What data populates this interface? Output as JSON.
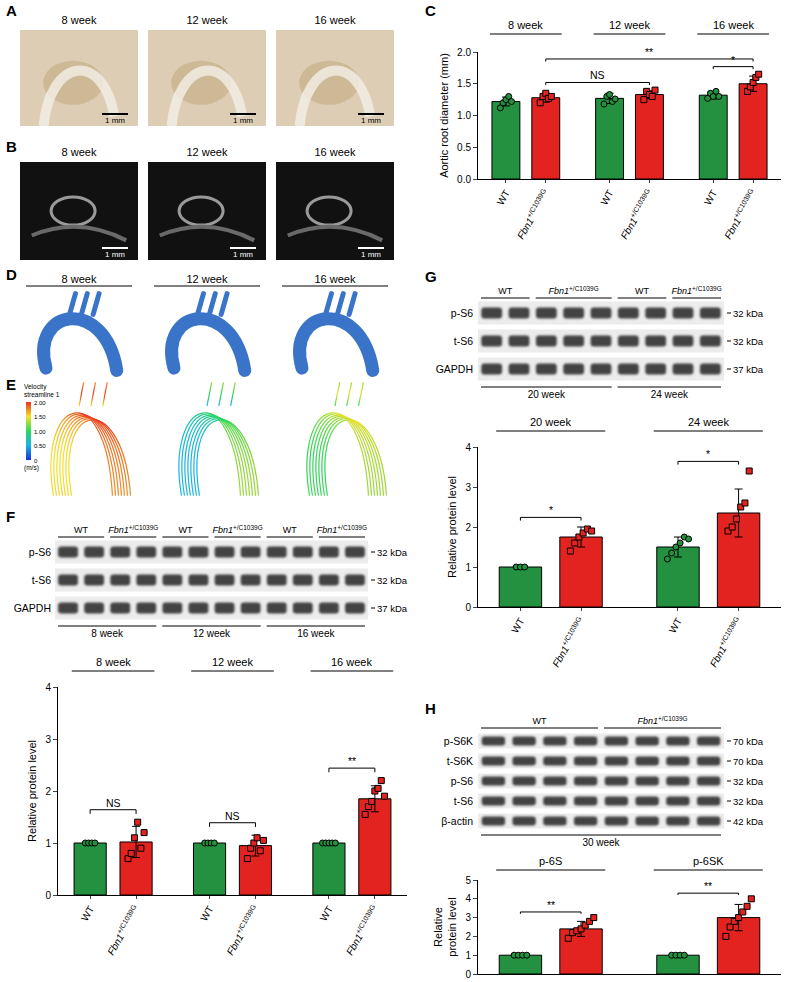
{
  "chart_data": [
    {
      "type": "bar",
      "panel": "C",
      "y_label": "Aortic root diameter (mm)",
      "categories": [
        "8 week",
        "12 week",
        "16 week"
      ],
      "series": [
        {
          "name": "WT",
          "color": "#23913f",
          "marker": "circle",
          "values": [
            1.22,
            1.27,
            1.32
          ],
          "errors": [
            0.07,
            0.08,
            0.06
          ],
          "points": [
            [
              1.12,
              1.2,
              1.25,
              1.3,
              1.22
            ],
            [
              1.18,
              1.3,
              1.33,
              1.22,
              1.26
            ],
            [
              1.27,
              1.35,
              1.3,
              1.38,
              1.3
            ]
          ]
        },
        {
          "name": "Fbn1+/C1039G",
          "color": "#e3231f",
          "marker": "square",
          "values": [
            1.28,
            1.33,
            1.5
          ],
          "errors": [
            0.07,
            0.06,
            0.12
          ],
          "points": [
            [
              1.2,
              1.3,
              1.35,
              1.27,
              1.3
            ],
            [
              1.25,
              1.38,
              1.33,
              1.3,
              1.4
            ],
            [
              1.38,
              1.45,
              1.52,
              1.6,
              1.65
            ]
          ]
        }
      ],
      "ylim": [
        0,
        2
      ],
      "yticks": [
        {
          "value": 0,
          "label": "0.0"
        },
        0.5,
        {
          "value": 1,
          "label": "1.0"
        },
        1.5,
        {
          "value": 2,
          "label": "2.0"
        }
      ],
      "significance": [
        {
          "from": [
            0,
            1
          ],
          "to": [
            1,
            1
          ],
          "label": "NS"
        },
        {
          "from": [
            0,
            1
          ],
          "to": [
            2,
            1
          ],
          "label": "**"
        },
        {
          "from": [
            2,
            0
          ],
          "to": [
            2,
            1
          ],
          "label": "*"
        }
      ]
    },
    {
      "type": "bar",
      "panel": "F",
      "y_label": "Relative protein level",
      "categories": [
        "8 week",
        "12 week",
        "16 week"
      ],
      "series": [
        {
          "name": "WT",
          "color": "#23913f",
          "marker": "circle",
          "values": [
            1,
            1,
            1
          ],
          "errors": [
            0,
            0,
            0
          ],
          "points": [
            [
              1,
              1,
              1,
              1
            ],
            [
              1,
              1,
              1,
              1
            ],
            [
              1,
              1,
              1,
              1,
              1
            ]
          ]
        },
        {
          "name": "Fbn1+/C1039G",
          "color": "#e3231f",
          "marker": "square",
          "values": [
            1.02,
            0.95,
            1.85
          ],
          "errors": [
            0.3,
            0.2,
            0.25
          ],
          "points": [
            [
              0.7,
              0.8,
              1.1,
              1.4,
              0.9,
              1.2
            ],
            [
              0.7,
              0.9,
              1.0,
              1.1,
              0.85,
              1.05
            ],
            [
              1.55,
              1.7,
              1.8,
              2.0,
              2.05,
              2.2,
              1.9
            ]
          ]
        }
      ],
      "ylim": [
        0,
        4
      ],
      "yticks": [
        0,
        1,
        2,
        3,
        4
      ],
      "significance": [
        {
          "from": [
            0,
            0
          ],
          "to": [
            0,
            1
          ],
          "label": "NS"
        },
        {
          "from": [
            1,
            0
          ],
          "to": [
            1,
            1
          ],
          "label": "NS"
        },
        {
          "from": [
            2,
            0
          ],
          "to": [
            2,
            1
          ],
          "label": "**"
        }
      ]
    },
    {
      "type": "bar",
      "panel": "G",
      "y_label": "Relative protein level",
      "categories": [
        "20 week",
        "24 week"
      ],
      "series": [
        {
          "name": "WT",
          "color": "#23913f",
          "marker": "circle",
          "values": [
            1.0,
            1.5
          ],
          "errors": [
            0.02,
            0.25
          ],
          "points": [
            [
              1,
              1,
              1
            ],
            [
              1.2,
              1.35,
              1.5,
              1.6,
              1.75,
              1.7
            ]
          ]
        },
        {
          "name": "Fbn1+/C1039G",
          "color": "#e3231f",
          "marker": "square",
          "values": [
            1.75,
            2.35
          ],
          "errors": [
            0.25,
            0.6
          ],
          "points": [
            [
              1.4,
              1.6,
              1.75,
              1.85,
              1.95,
              1.9
            ],
            [
              1.9,
              2.0,
              2.2,
              2.5,
              2.6,
              3.4
            ]
          ]
        }
      ],
      "ylim": [
        0,
        4
      ],
      "yticks": [
        0,
        1,
        2,
        3,
        4
      ],
      "significance": [
        {
          "from": [
            0,
            0
          ],
          "to": [
            0,
            1
          ],
          "label": "*"
        },
        {
          "from": [
            1,
            0
          ],
          "to": [
            1,
            1
          ],
          "label": "*"
        }
      ]
    },
    {
      "type": "bar",
      "panel": "H",
      "y_label": "Relative protein level",
      "tick_labels": "y",
      "categories": [
        "p-6S",
        "p-6SK"
      ],
      "series": [
        {
          "color": "#23913f",
          "marker": "circle",
          "values": [
            1,
            1
          ],
          "errors": [
            0,
            0
          ],
          "points": [
            [
              1,
              1,
              1,
              1
            ],
            [
              1,
              1,
              1,
              1
            ]
          ]
        },
        {
          "color": "#e3231f",
          "marker": "square",
          "values": [
            2.4,
            3.0
          ],
          "errors": [
            0.4,
            0.7
          ],
          "points": [
            [
              1.9,
              2.2,
              2.3,
              2.4,
              2.6,
              2.8,
              3.0
            ],
            [
              2.0,
              2.5,
              2.8,
              3.0,
              3.3,
              3.6,
              4.0
            ]
          ]
        }
      ],
      "ylim": [
        0,
        5
      ],
      "yticks": [
        0,
        1,
        2,
        3,
        4,
        5
      ],
      "significance": [
        {
          "from": [
            0,
            0
          ],
          "to": [
            0,
            1
          ],
          "label": "**"
        },
        {
          "from": [
            1,
            0
          ],
          "to": [
            1,
            1
          ],
          "label": "**"
        }
      ]
    }
  ],
  "images": [
    {
      "panel": "A",
      "titles": [
        "8 week",
        "12 week",
        "16 week"
      ],
      "scale_bar": "1 mm"
    },
    {
      "panel": "B",
      "titles": [
        "8 week",
        "12 week",
        "16 week"
      ],
      "scale_bar": "1 mm"
    },
    {
      "panel": "D",
      "titles": [
        "8 week",
        "12 week",
        "16 week"
      ]
    },
    {
      "panel": "E",
      "colorbar": {
        "title": "Velocity streamline 1",
        "unit": "(m/s)",
        "range": [
          0,
          2
        ],
        "ticks": [
          0,
          {
            "value": 0.5,
            "label": "0.50"
          },
          {
            "value": 1,
            "label": "1.00"
          },
          {
            "value": 1.5,
            "label": "1.50"
          },
          {
            "value": 2,
            "label": "2.00"
          }
        ]
      }
    }
  ],
  "blots": [
    {
      "panel": "F",
      "lane_groups": [
        {
          "label": "WT",
          "lanes": 2
        },
        {
          "label": "Fbn1+/C1039G",
          "lanes": 2
        },
        {
          "label": "WT",
          "lanes": 2
        },
        {
          "label": "Fbn1+/C1039G",
          "lanes": 2
        },
        {
          "label": "WT",
          "lanes": 2
        },
        {
          "label": "Fbn1+/C1039G",
          "lanes": 2
        }
      ],
      "rows": [
        {
          "label": "p-S6",
          "size": "32 kDa"
        },
        {
          "label": "t-S6",
          "size": "32 kDa"
        },
        {
          "label": "GAPDH",
          "size": "37 kDa"
        }
      ],
      "time_groups": [
        {
          "label": "8 week",
          "lanes": 4
        },
        {
          "label": "12 week",
          "lanes": 4
        },
        {
          "label": "16 week",
          "lanes": 4
        }
      ]
    },
    {
      "panel": "G",
      "lane_groups": [
        {
          "label": "WT",
          "lanes": 2
        },
        {
          "label": "Fbn1+/C1039G",
          "lanes": 3
        },
        {
          "label": "WT",
          "lanes": 2
        },
        {
          "label": "Fbn1+/C1039G",
          "lanes": 2
        }
      ],
      "rows": [
        {
          "label": "p-S6",
          "size": "32 kDa"
        },
        {
          "label": "t-S6",
          "size": "32 kDa"
        },
        {
          "label": "GAPDH",
          "size": "37 kDa"
        }
      ],
      "time_groups": [
        {
          "label": "20 week",
          "lanes": 5
        },
        {
          "label": "24 week",
          "lanes": 4
        }
      ]
    },
    {
      "panel": "H",
      "lane_groups": [
        {
          "label": "WT",
          "lanes": 4
        },
        {
          "label": "Fbn1+/C1039G",
          "lanes": 4
        }
      ],
      "rows": [
        {
          "label": "p-S6K",
          "size": "70 kDa"
        },
        {
          "label": "t-S6K",
          "size": "70 kDa"
        },
        {
          "label": "p-S6",
          "size": "32 kDa"
        },
        {
          "label": "t-S6",
          "size": "32 kDa"
        },
        {
          "label": "β-actin",
          "size": "42 kDa"
        }
      ],
      "time_groups": [
        {
          "label": "30 week",
          "lanes": 8
        }
      ]
    }
  ]
}
